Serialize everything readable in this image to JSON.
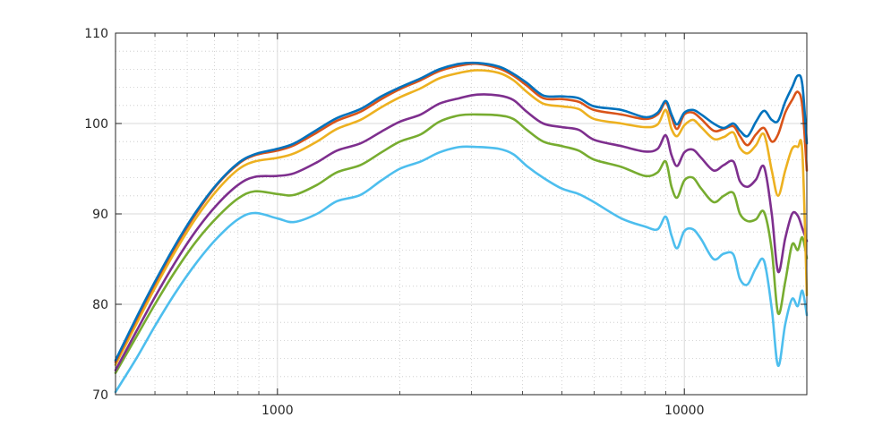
{
  "chart_data": {
    "type": "line",
    "title": "",
    "xlabel": "",
    "ylabel": "",
    "x_scale": "log",
    "xlim": [
      400,
      20000
    ],
    "ylim": [
      70,
      110
    ],
    "grid": "major-and-minor",
    "legend": "none",
    "x_ticks": [
      1000,
      10000
    ],
    "x_tick_labels": [
      "1000",
      "10000"
    ],
    "y_ticks": [
      70,
      80,
      90,
      100,
      110
    ],
    "y_tick_labels": [
      "70",
      "80",
      "90",
      "100",
      "110"
    ],
    "series": [
      {
        "color": "#0072BD",
        "points": [
          [
            400,
            73.8
          ],
          [
            450,
            78.5
          ],
          [
            500,
            82.5
          ],
          [
            560,
            86.5
          ],
          [
            630,
            90.2
          ],
          [
            710,
            93.3
          ],
          [
            800,
            95.6
          ],
          [
            880,
            96.6
          ],
          [
            1000,
            97.2
          ],
          [
            1100,
            97.8
          ],
          [
            1250,
            99.3
          ],
          [
            1400,
            100.6
          ],
          [
            1600,
            101.6
          ],
          [
            1800,
            103.0
          ],
          [
            2000,
            104.0
          ],
          [
            2250,
            105.0
          ],
          [
            2500,
            106.0
          ],
          [
            2800,
            106.6
          ],
          [
            3100,
            106.7
          ],
          [
            3500,
            106.3
          ],
          [
            3800,
            105.5
          ],
          [
            4100,
            104.5
          ],
          [
            4500,
            103.1
          ],
          [
            5000,
            103.0
          ],
          [
            5500,
            102.8
          ],
          [
            6000,
            101.9
          ],
          [
            7000,
            101.5
          ],
          [
            8000,
            100.7
          ],
          [
            8600,
            101.2
          ],
          [
            9000,
            102.5
          ],
          [
            9300,
            101.0
          ],
          [
            9600,
            99.9
          ],
          [
            10000,
            101.2
          ],
          [
            10500,
            101.5
          ],
          [
            11000,
            101.0
          ],
          [
            11800,
            100.0
          ],
          [
            12500,
            99.5
          ],
          [
            13200,
            100.0
          ],
          [
            13700,
            99.2
          ],
          [
            14300,
            98.6
          ],
          [
            15000,
            100.2
          ],
          [
            15700,
            101.4
          ],
          [
            16400,
            100.4
          ],
          [
            17000,
            100.3
          ],
          [
            17700,
            102.4
          ],
          [
            18400,
            104.0
          ],
          [
            19000,
            105.3
          ],
          [
            19500,
            104.3
          ],
          [
            20000,
            97.8
          ]
        ]
      },
      {
        "color": "#D95319",
        "points": [
          [
            400,
            73.6
          ],
          [
            450,
            78.3
          ],
          [
            500,
            82.3
          ],
          [
            560,
            86.3
          ],
          [
            630,
            90.0
          ],
          [
            710,
            93.2
          ],
          [
            800,
            95.5
          ],
          [
            880,
            96.5
          ],
          [
            1000,
            97.0
          ],
          [
            1100,
            97.6
          ],
          [
            1250,
            99.0
          ],
          [
            1400,
            100.3
          ],
          [
            1600,
            101.3
          ],
          [
            1800,
            102.7
          ],
          [
            2000,
            103.8
          ],
          [
            2250,
            104.8
          ],
          [
            2500,
            105.8
          ],
          [
            2800,
            106.4
          ],
          [
            3100,
            106.6
          ],
          [
            3500,
            106.1
          ],
          [
            3800,
            105.3
          ],
          [
            4100,
            104.2
          ],
          [
            4500,
            102.8
          ],
          [
            5000,
            102.7
          ],
          [
            5500,
            102.4
          ],
          [
            6000,
            101.5
          ],
          [
            7000,
            101.0
          ],
          [
            8000,
            100.5
          ],
          [
            8600,
            101.0
          ],
          [
            9000,
            102.3
          ],
          [
            9300,
            100.7
          ],
          [
            9600,
            99.4
          ],
          [
            10000,
            101.0
          ],
          [
            10500,
            101.2
          ],
          [
            11000,
            100.5
          ],
          [
            11800,
            99.2
          ],
          [
            12500,
            99.4
          ],
          [
            13200,
            99.7
          ],
          [
            13700,
            98.6
          ],
          [
            14300,
            97.6
          ],
          [
            15000,
            98.8
          ],
          [
            15700,
            99.5
          ],
          [
            16400,
            98.0
          ],
          [
            17000,
            98.8
          ],
          [
            17700,
            101.2
          ],
          [
            18400,
            102.6
          ],
          [
            19000,
            103.5
          ],
          [
            19500,
            101.9
          ],
          [
            20000,
            94.8
          ]
        ]
      },
      {
        "color": "#EDB120",
        "points": [
          [
            400,
            73.3
          ],
          [
            450,
            77.8
          ],
          [
            500,
            81.8
          ],
          [
            560,
            85.8
          ],
          [
            630,
            89.5
          ],
          [
            710,
            92.6
          ],
          [
            800,
            94.9
          ],
          [
            880,
            95.8
          ],
          [
            1000,
            96.2
          ],
          [
            1100,
            96.7
          ],
          [
            1250,
            98.0
          ],
          [
            1400,
            99.4
          ],
          [
            1600,
            100.4
          ],
          [
            1800,
            101.8
          ],
          [
            2000,
            102.9
          ],
          [
            2250,
            103.9
          ],
          [
            2500,
            105.0
          ],
          [
            2800,
            105.6
          ],
          [
            3100,
            105.9
          ],
          [
            3500,
            105.6
          ],
          [
            3800,
            104.8
          ],
          [
            4100,
            103.5
          ],
          [
            4500,
            102.2
          ],
          [
            5000,
            101.9
          ],
          [
            5500,
            101.6
          ],
          [
            6000,
            100.5
          ],
          [
            7000,
            100.0
          ],
          [
            8000,
            99.6
          ],
          [
            8600,
            99.9
          ],
          [
            9000,
            101.5
          ],
          [
            9300,
            99.4
          ],
          [
            9600,
            98.6
          ],
          [
            10000,
            99.8
          ],
          [
            10500,
            100.4
          ],
          [
            11000,
            99.6
          ],
          [
            11800,
            98.3
          ],
          [
            12500,
            98.5
          ],
          [
            13200,
            99.0
          ],
          [
            13700,
            97.3
          ],
          [
            14300,
            96.7
          ],
          [
            15000,
            97.6
          ],
          [
            15700,
            98.8
          ],
          [
            16400,
            94.8
          ],
          [
            17000,
            92.0
          ],
          [
            17700,
            94.8
          ],
          [
            18400,
            97.2
          ],
          [
            19000,
            97.4
          ],
          [
            19500,
            96.8
          ],
          [
            20000,
            81.0
          ]
        ]
      },
      {
        "color": "#7E2F8E",
        "points": [
          [
            400,
            72.7
          ],
          [
            450,
            77.0
          ],
          [
            500,
            80.8
          ],
          [
            560,
            84.6
          ],
          [
            630,
            88.1
          ],
          [
            710,
            91.0
          ],
          [
            800,
            93.2
          ],
          [
            880,
            94.1
          ],
          [
            1000,
            94.2
          ],
          [
            1100,
            94.5
          ],
          [
            1250,
            95.7
          ],
          [
            1400,
            97.0
          ],
          [
            1600,
            97.8
          ],
          [
            1800,
            99.1
          ],
          [
            2000,
            100.2
          ],
          [
            2250,
            101.0
          ],
          [
            2500,
            102.2
          ],
          [
            2800,
            102.8
          ],
          [
            3100,
            103.2
          ],
          [
            3500,
            103.1
          ],
          [
            3800,
            102.6
          ],
          [
            4100,
            101.3
          ],
          [
            4500,
            100.0
          ],
          [
            5000,
            99.6
          ],
          [
            5500,
            99.3
          ],
          [
            6000,
            98.2
          ],
          [
            7000,
            97.5
          ],
          [
            8000,
            96.9
          ],
          [
            8600,
            97.2
          ],
          [
            9000,
            98.7
          ],
          [
            9300,
            96.5
          ],
          [
            9600,
            95.3
          ],
          [
            10000,
            96.8
          ],
          [
            10500,
            97.1
          ],
          [
            11000,
            96.2
          ],
          [
            11800,
            94.8
          ],
          [
            12500,
            95.4
          ],
          [
            13200,
            95.8
          ],
          [
            13700,
            93.6
          ],
          [
            14300,
            93.0
          ],
          [
            15000,
            93.8
          ],
          [
            15700,
            95.2
          ],
          [
            16400,
            90.0
          ],
          [
            17000,
            83.6
          ],
          [
            17700,
            87.3
          ],
          [
            18400,
            90.0
          ],
          [
            19000,
            89.8
          ],
          [
            19500,
            88.4
          ],
          [
            20000,
            87.0
          ]
        ]
      },
      {
        "color": "#77AC30",
        "points": [
          [
            400,
            72.4
          ],
          [
            450,
            76.4
          ],
          [
            500,
            80.0
          ],
          [
            560,
            83.6
          ],
          [
            630,
            86.9
          ],
          [
            710,
            89.6
          ],
          [
            800,
            91.7
          ],
          [
            880,
            92.5
          ],
          [
            1000,
            92.2
          ],
          [
            1100,
            92.1
          ],
          [
            1250,
            93.2
          ],
          [
            1400,
            94.6
          ],
          [
            1600,
            95.4
          ],
          [
            1800,
            96.8
          ],
          [
            2000,
            98.0
          ],
          [
            2250,
            98.8
          ],
          [
            2500,
            100.2
          ],
          [
            2800,
            100.9
          ],
          [
            3100,
            101.0
          ],
          [
            3500,
            100.9
          ],
          [
            3800,
            100.5
          ],
          [
            4100,
            99.3
          ],
          [
            4500,
            98.0
          ],
          [
            5000,
            97.5
          ],
          [
            5500,
            97.0
          ],
          [
            6000,
            96.0
          ],
          [
            7000,
            95.2
          ],
          [
            8000,
            94.2
          ],
          [
            8600,
            94.6
          ],
          [
            9000,
            95.8
          ],
          [
            9300,
            93.0
          ],
          [
            9600,
            91.8
          ],
          [
            10000,
            93.7
          ],
          [
            10500,
            94.0
          ],
          [
            11000,
            92.8
          ],
          [
            11800,
            91.3
          ],
          [
            12500,
            92.0
          ],
          [
            13200,
            92.3
          ],
          [
            13700,
            90.0
          ],
          [
            14300,
            89.2
          ],
          [
            15000,
            89.4
          ],
          [
            15700,
            90.2
          ],
          [
            16400,
            86.0
          ],
          [
            17000,
            79.0
          ],
          [
            17700,
            82.5
          ],
          [
            18400,
            86.6
          ],
          [
            19000,
            86.0
          ],
          [
            19500,
            87.4
          ],
          [
            20000,
            85.1
          ]
        ]
      },
      {
        "color": "#4DBEEE",
        "points": [
          [
            400,
            70.3
          ],
          [
            450,
            74.0
          ],
          [
            500,
            77.6
          ],
          [
            560,
            81.2
          ],
          [
            630,
            84.5
          ],
          [
            710,
            87.3
          ],
          [
            800,
            89.4
          ],
          [
            880,
            90.1
          ],
          [
            1000,
            89.5
          ],
          [
            1100,
            89.1
          ],
          [
            1250,
            90.0
          ],
          [
            1400,
            91.4
          ],
          [
            1600,
            92.1
          ],
          [
            1800,
            93.7
          ],
          [
            2000,
            95.0
          ],
          [
            2250,
            95.8
          ],
          [
            2500,
            96.8
          ],
          [
            2800,
            97.4
          ],
          [
            3100,
            97.4
          ],
          [
            3500,
            97.2
          ],
          [
            3800,
            96.6
          ],
          [
            4100,
            95.3
          ],
          [
            4500,
            94.0
          ],
          [
            5000,
            92.8
          ],
          [
            5500,
            92.2
          ],
          [
            6000,
            91.3
          ],
          [
            7000,
            89.5
          ],
          [
            8000,
            88.6
          ],
          [
            8600,
            88.3
          ],
          [
            9000,
            89.7
          ],
          [
            9300,
            87.6
          ],
          [
            9600,
            86.2
          ],
          [
            10000,
            88.1
          ],
          [
            10500,
            88.3
          ],
          [
            11000,
            87.2
          ],
          [
            11800,
            85.0
          ],
          [
            12500,
            85.6
          ],
          [
            13200,
            85.5
          ],
          [
            13700,
            82.8
          ],
          [
            14300,
            82.2
          ],
          [
            15000,
            84.0
          ],
          [
            15700,
            84.8
          ],
          [
            16400,
            79.5
          ],
          [
            17000,
            73.2
          ],
          [
            17700,
            77.8
          ],
          [
            18400,
            80.6
          ],
          [
            19000,
            79.8
          ],
          [
            19500,
            81.5
          ],
          [
            20000,
            78.8
          ]
        ]
      }
    ]
  }
}
